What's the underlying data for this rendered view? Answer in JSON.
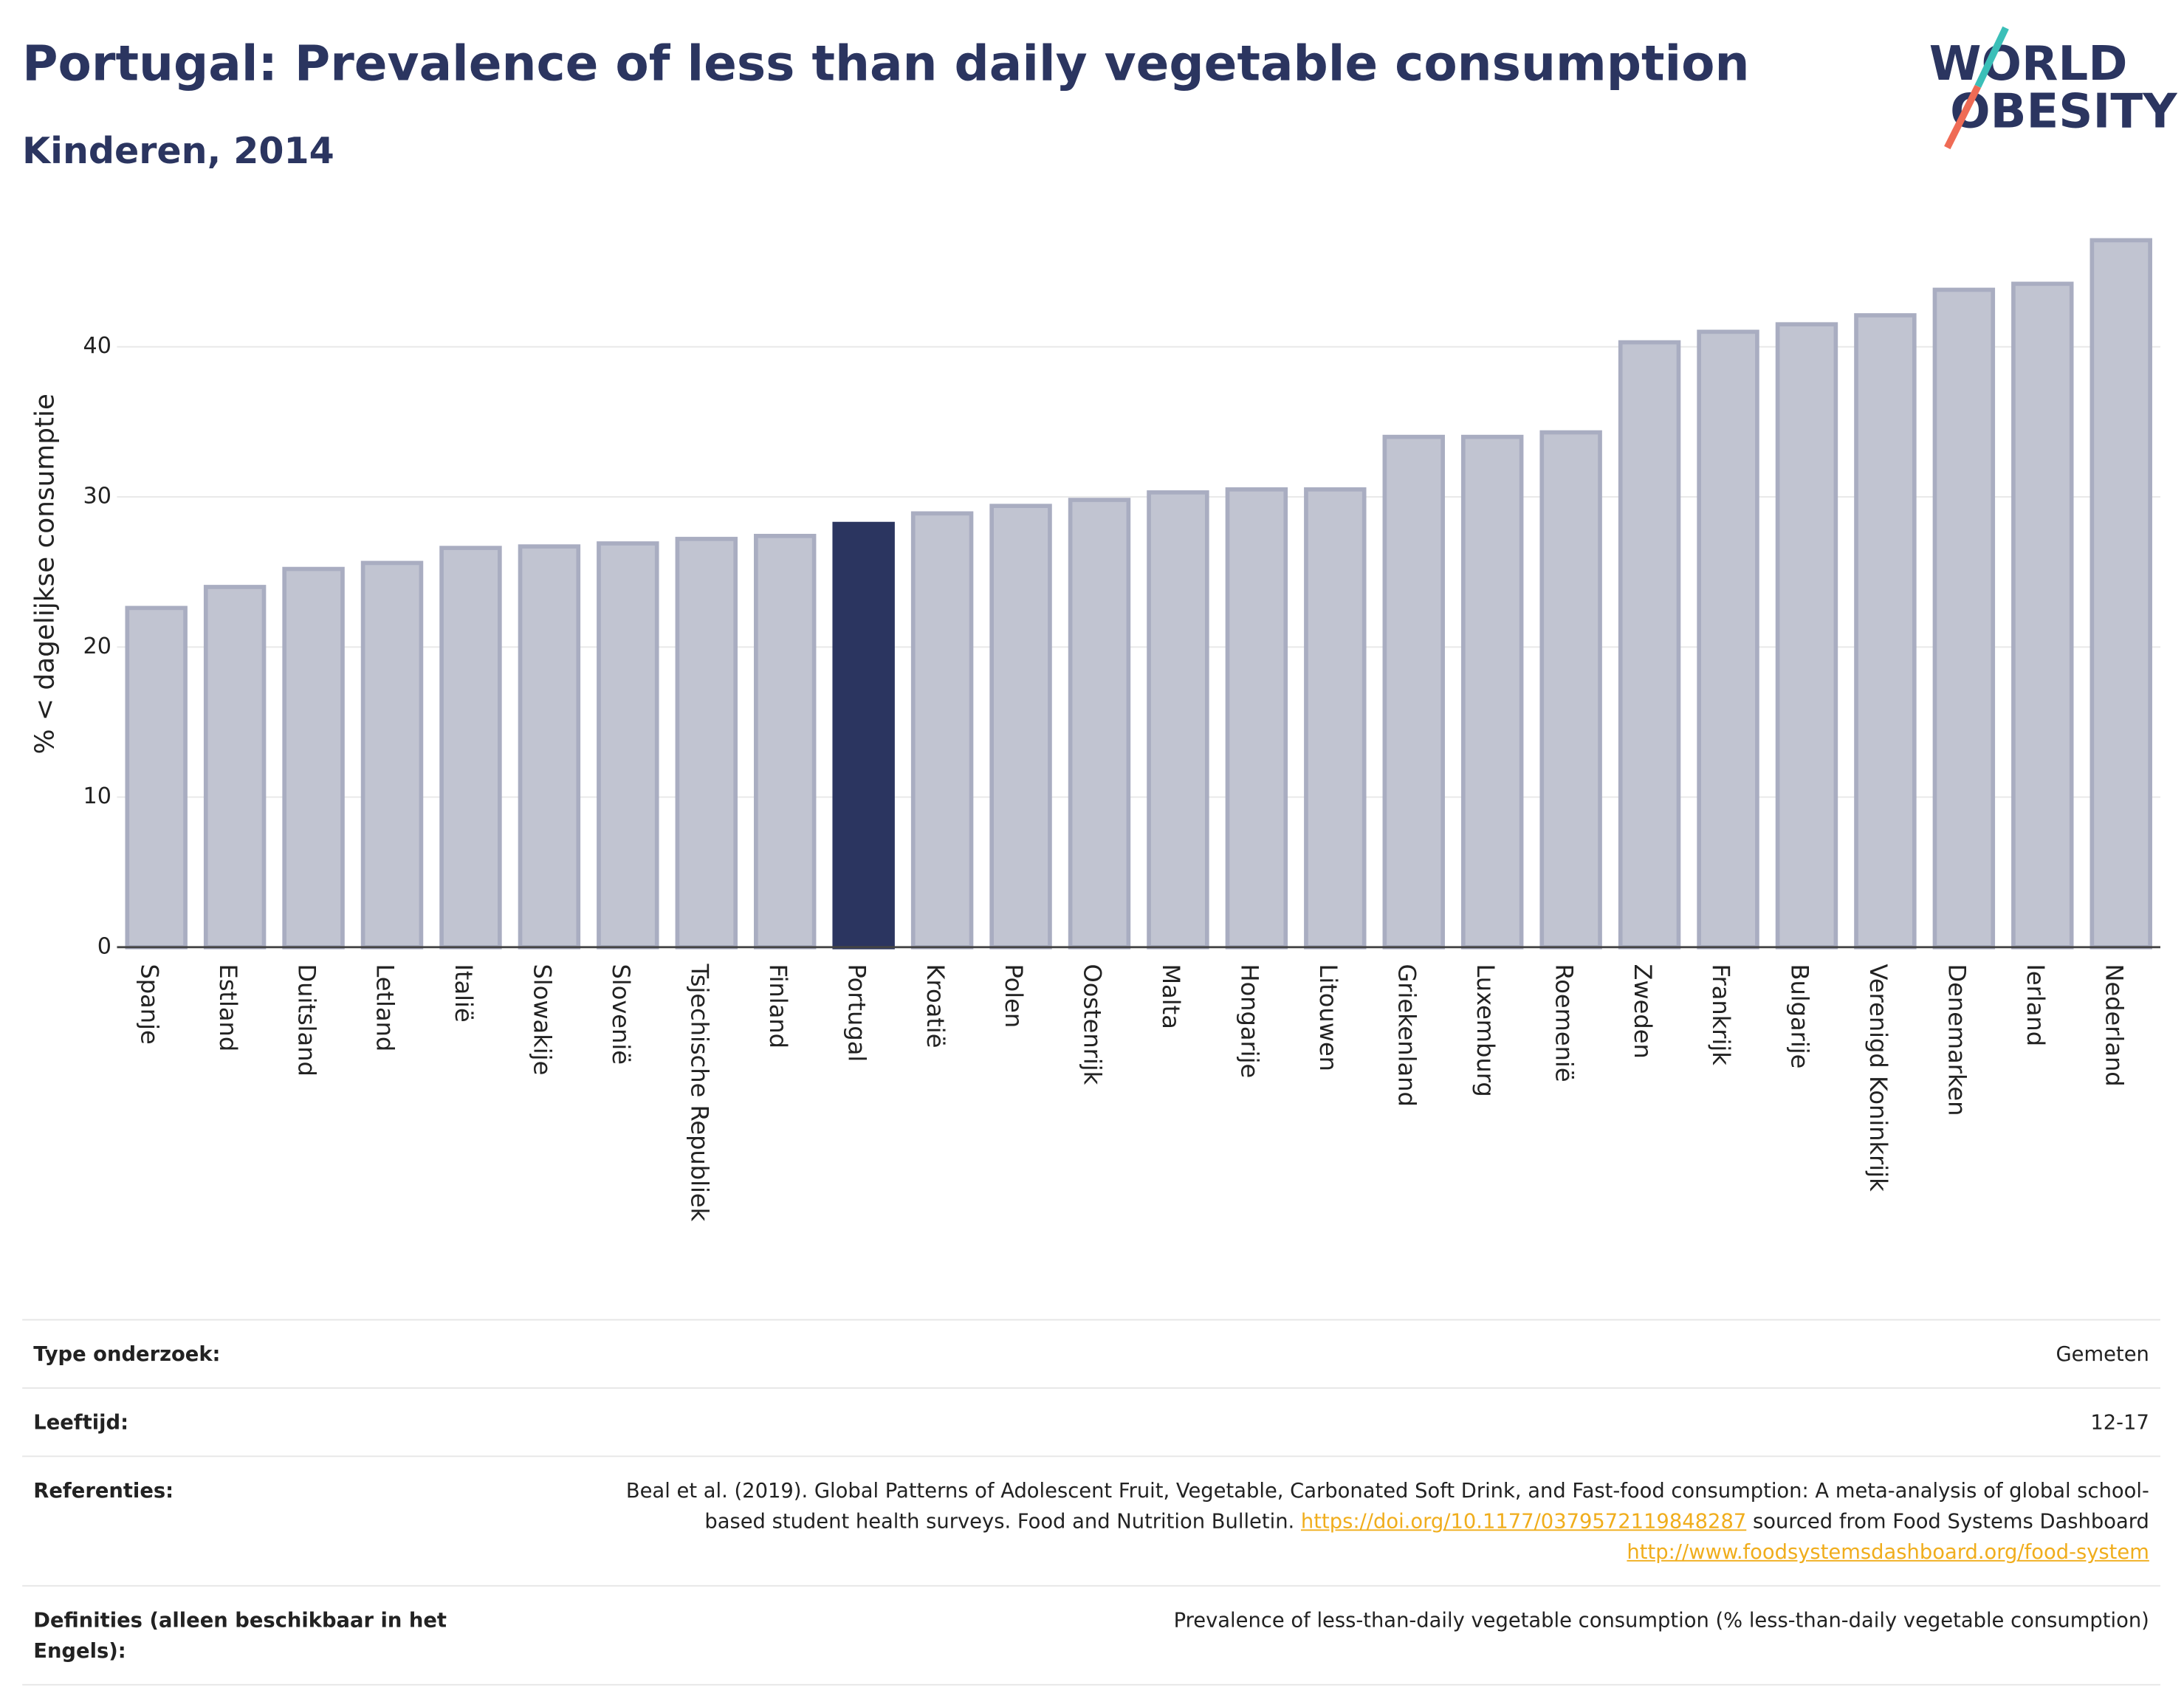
{
  "chart_data": {
    "type": "bar",
    "title": "Portugal: Prevalence of less than daily vegetable consumption",
    "subtitle": "Kinderen, 2014",
    "y_label": "% < dagelijkse consumptie",
    "categories": [
      "Spanje",
      "Estland",
      "Duitsland",
      "Letland",
      "Italië",
      "Slowakije",
      "Slovenië",
      "Tsjechische Republiek",
      "Finland",
      "Portugal",
      "Kroatië",
      "Polen",
      "Oostenrijk",
      "Malta",
      "Hongarije",
      "Litouwen",
      "Griekenland",
      "Luxemburg",
      "Roemenië",
      "Zweden",
      "Frankrijk",
      "Bulgarije",
      "Verenigd Koninkrijk",
      "Denemarken",
      "Ierland",
      "Nederland"
    ],
    "values": [
      22.6,
      24.0,
      25.2,
      25.6,
      26.6,
      26.7,
      26.9,
      27.2,
      27.4,
      28.2,
      28.9,
      29.4,
      29.8,
      30.3,
      30.5,
      30.5,
      34.0,
      34.0,
      34.3,
      40.3,
      41.0,
      41.5,
      42.1,
      43.8,
      44.2,
      47.1
    ],
    "colors": [
      "#c1c4d1",
      "#c1c4d1",
      "#c1c4d1",
      "#c1c4d1",
      "#c1c4d1",
      "#c1c4d1",
      "#c1c4d1",
      "#c1c4d1",
      "#c1c4d1",
      "#2b3560",
      "#c1c4d1",
      "#c1c4d1",
      "#c1c4d1",
      "#c1c4d1",
      "#c1c4d1",
      "#c1c4d1",
      "#c1c4d1",
      "#c1c4d1",
      "#c1c4d1",
      "#c1c4d1",
      "#c1c4d1",
      "#c1c4d1",
      "#c1c4d1",
      "#c1c4d1",
      "#c1c4d1",
      "#c1c4d1"
    ],
    "ylim": [
      0,
      49
    ],
    "yticks": [
      0,
      10,
      20,
      30,
      40
    ],
    "grid": true
  },
  "logo": {
    "line1": "WORLD",
    "line2": "OBESITY"
  },
  "info": {
    "rows": [
      {
        "label": "Type onderzoek:",
        "value": "Gemeten"
      },
      {
        "label": "Leeftijd:",
        "value": "12-17"
      },
      {
        "label": "Referenties:",
        "parts": [
          "Beal et al. (2019). Global Patterns of Adolescent Fruit, Vegetable, Carbonated Soft Drink, and Fast-food consumption: A meta-analysis of global school-based student health surveys. Food and Nutrition Bulletin.",
          "https://doi.org/10.1177/0379572119848287",
          "sourced from Food Systems Dashboard",
          "http://www.foodsystemsdashboard.org/food-system"
        ]
      },
      {
        "label": "Definities (alleen beschikbaar in het Engels):",
        "value": "Prevalence of less-than-daily vegetable consumption (% less-than-daily vegetable consumption)"
      }
    ]
  }
}
